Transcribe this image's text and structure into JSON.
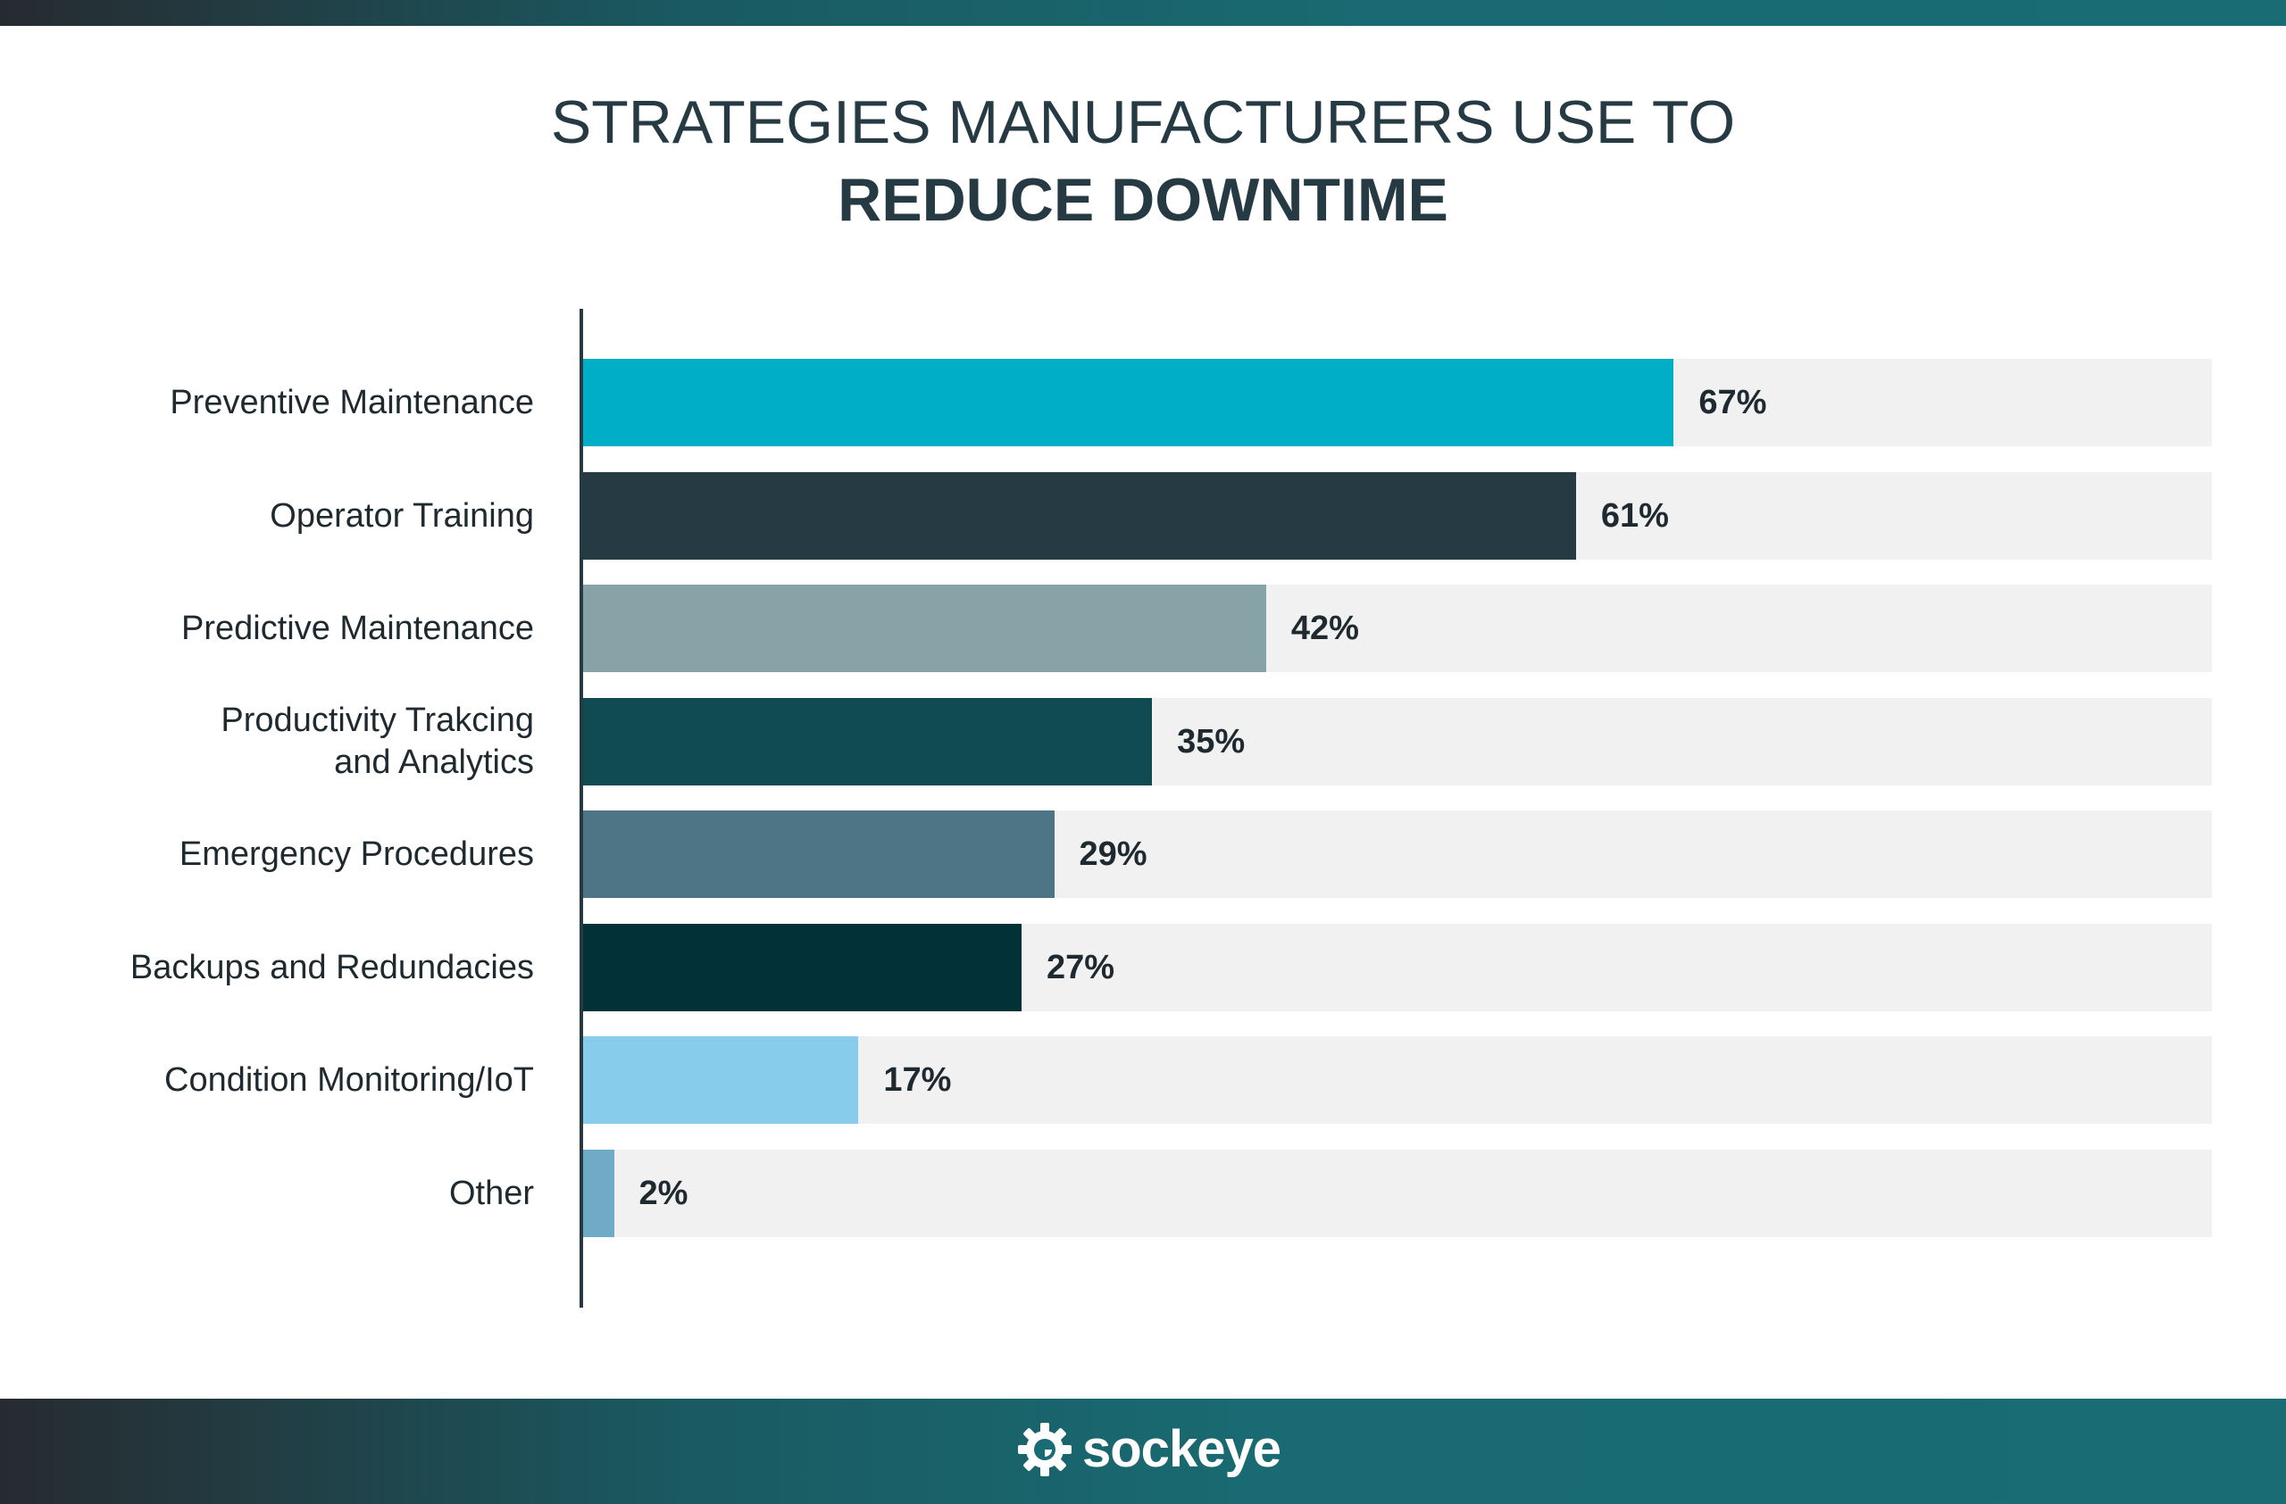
{
  "title": {
    "line1": "STRATEGIES MANUFACTURERS USE TO",
    "line2": "REDUCE DOWNTIME"
  },
  "brand": {
    "name": "sockeye",
    "icon": "gear-eye-icon"
  },
  "colors": {
    "title": "#263a44",
    "track": "#f1f1f1",
    "band": "#196c74"
  },
  "chart_data": {
    "type": "bar",
    "orientation": "horizontal",
    "title": "STRATEGIES MANUFACTURERS USE TO REDUCE DOWNTIME",
    "xlim": [
      0,
      100
    ],
    "grid": false,
    "categories": [
      "Preventive Maintenance",
      "Operator Training",
      "Predictive Maintenance",
      "Productivity Trakcing\nand Analytics",
      "Emergency Procedures",
      "Backups and Redundacies",
      "Condition Monitoring/IoT",
      "Other"
    ],
    "values": [
      67,
      61,
      42,
      35,
      29,
      27,
      17,
      2
    ],
    "value_labels": [
      "67%",
      "61%",
      "42%",
      "35%",
      "29%",
      "27%",
      "17%",
      "2%"
    ],
    "bar_colors": [
      "#00afc7",
      "#263a44",
      "#88a3a8",
      "#104a52",
      "#4e7585",
      "#023138",
      "#87cdeb",
      "#6faac6"
    ]
  }
}
